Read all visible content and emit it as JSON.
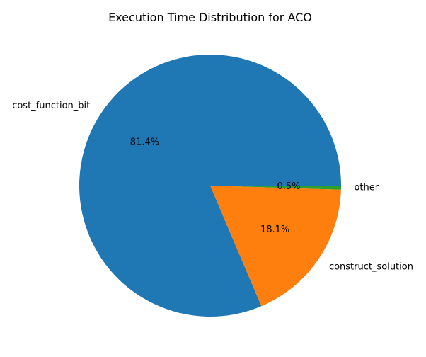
{
  "chart_data": {
    "type": "pie",
    "title": "Execution Time Distribution for ACO",
    "start_angle_deg": 0,
    "direction": "counterclockwise",
    "slices": [
      {
        "label": "cost_function_bit",
        "value": 81.4,
        "pct_label": "81.4%",
        "color": "#1f77b4"
      },
      {
        "label": "construct_solution",
        "value": 18.1,
        "pct_label": "18.1%",
        "color": "#ff7f0e"
      },
      {
        "label": "other",
        "value": 0.5,
        "pct_label": "0.5%",
        "color": "#2ca02c"
      }
    ]
  }
}
